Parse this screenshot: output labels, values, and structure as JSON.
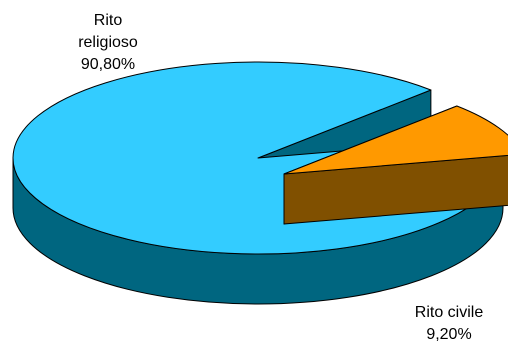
{
  "chart_data": {
    "type": "pie",
    "style": "3d-exploded",
    "slices": [
      {
        "label": "Rito religioso",
        "value": 90.8,
        "value_label": "90,80%",
        "color": "#33ccff",
        "side_color": "#006680",
        "label_lines": [
          "Rito",
          "religioso",
          "90,80%"
        ]
      },
      {
        "label": "Rito civile",
        "value": 9.2,
        "value_label": "9,20%",
        "color": "#ff9900",
        "side_color": "#805000",
        "label_lines": [
          "Rito civile",
          "9,20%"
        ]
      }
    ]
  }
}
